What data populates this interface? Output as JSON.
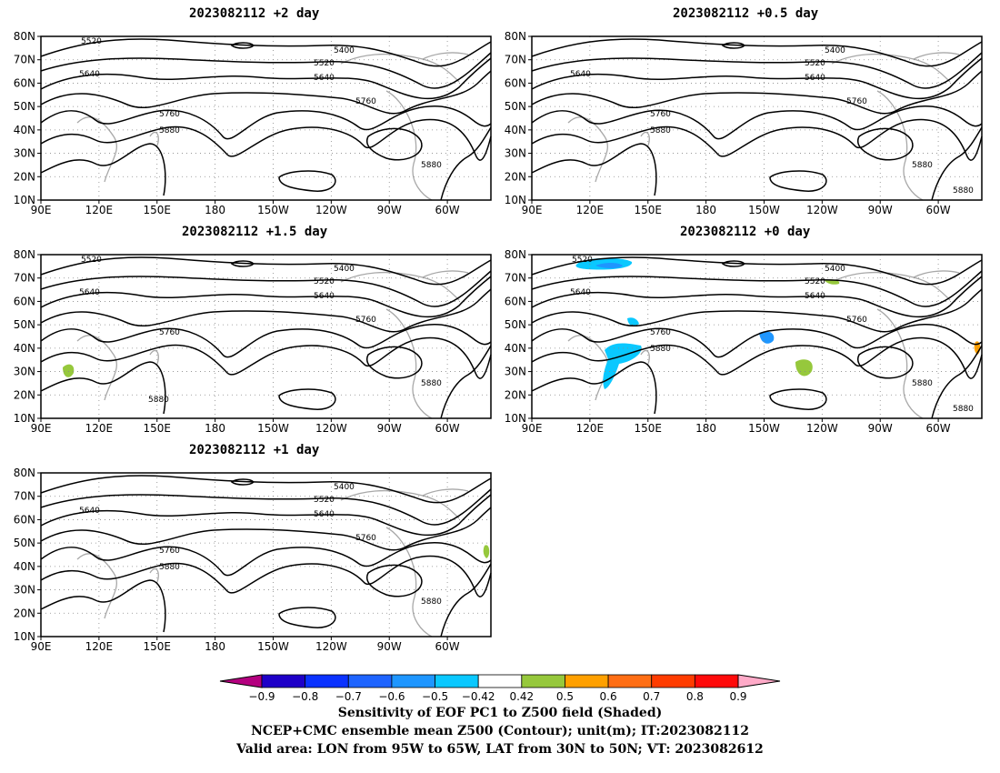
{
  "panels": [
    {
      "title": "2023082112 +2 day",
      "labels": {
        "top": "5520",
        "upper": "5400",
        "mid1": "5520",
        "mid2": "5640",
        "left": "5640",
        "c57": "5760",
        "c58a": "5760",
        "c58b": "5880",
        "south": "5880"
      }
    },
    {
      "title": "2023082112 +0.5 day",
      "labels": {
        "upper": "5400",
        "mid1": "5520",
        "mid2": "5640",
        "left": "5640",
        "c57": "5760",
        "c58a": "5760",
        "c58b": "5880",
        "south": "5880",
        "south2": "5880"
      }
    },
    {
      "title": "2023082112 +1.5 day",
      "labels": {
        "top": "5520",
        "upper": "5400",
        "mid1": "5520",
        "mid2": "5640",
        "left": "5640",
        "c57": "5760",
        "c58a": "5760",
        "south": "5880",
        "west": "5880"
      }
    },
    {
      "title": "2023082112 +0 day",
      "labels": {
        "top": "5520",
        "upper": "5400",
        "mid1": "5520",
        "mid2": "5640",
        "left": "5640",
        "c57": "5760",
        "c58a": "5760",
        "c58b": "5880",
        "south": "5880",
        "south2": "5880"
      }
    },
    {
      "title": "2023082112 +1 day",
      "labels": {
        "upper": "5400",
        "mid1": "5520",
        "mid2": "5640",
        "left": "5640",
        "c57": "5760",
        "c58a": "5760",
        "c58b": "5880",
        "south": "5880"
      }
    }
  ],
  "axes": {
    "lat_labels": [
      "80N",
      "70N",
      "60N",
      "50N",
      "40N",
      "30N",
      "20N",
      "10N"
    ],
    "lon_labels": [
      "90E",
      "120E",
      "150E",
      "180",
      "150W",
      "120W",
      "90W",
      "60W"
    ]
  },
  "colorbar": {
    "colors": [
      "#b4007f",
      "#1e00c8",
      "#0a32ff",
      "#1e64ff",
      "#1e96ff",
      "#0ac8ff",
      "#ffffff",
      "#96c83c",
      "#ffa000",
      "#ff6e14",
      "#ff3c00",
      "#ff0a0a",
      "#ffaac8"
    ],
    "ticks": [
      "−0.9",
      "−0.8",
      "−0.7",
      "−0.6",
      "−0.5",
      "−0.42",
      "0.42",
      "0.5",
      "0.6",
      "0.7",
      "0.8",
      "0.9"
    ]
  },
  "captions": {
    "line1": "Sensitivity of EOF PC1 to Z500 field (Shaded)",
    "line2": "NCEP+CMC ensemble mean Z500 (Contour); unit(m); IT:2023082112",
    "line3": "Valid area: LON from 95W to 65W, LAT from 30N to 50N; VT: 2023082612"
  }
}
